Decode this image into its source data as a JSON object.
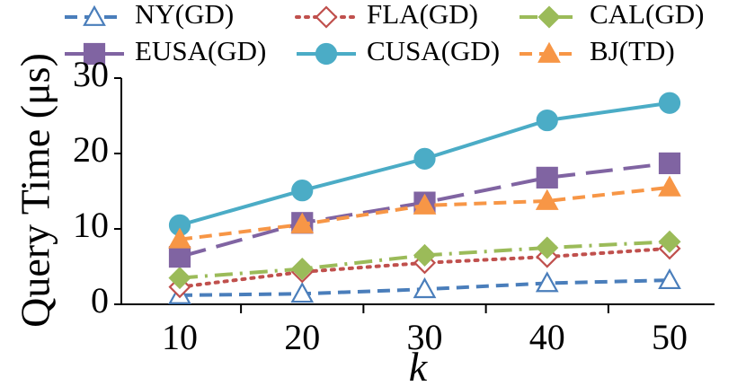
{
  "chart_data": {
    "type": "line",
    "x": [
      10,
      20,
      30,
      40,
      50
    ],
    "xlabel": "k",
    "ylabel": "Query Time (μs)",
    "ylim": [
      0,
      30
    ],
    "yticks": [
      0,
      10,
      20,
      30
    ],
    "grid": false,
    "legend_position": "top",
    "series": [
      {
        "name": "NY(GD)",
        "values": [
          1.2,
          1.4,
          2.0,
          2.8,
          3.2
        ],
        "color": "#4a7ebb",
        "marker": "triangle-open",
        "dash": "dashed"
      },
      {
        "name": "FLA(GD)",
        "values": [
          2.3,
          4.3,
          5.5,
          6.3,
          7.4
        ],
        "color": "#c0504d",
        "marker": "diamond-open",
        "dash": "dotted"
      },
      {
        "name": "CAL(GD)",
        "values": [
          3.5,
          4.7,
          6.5,
          7.5,
          8.3
        ],
        "color": "#9bbb59",
        "marker": "diamond",
        "dash": "dash-dot"
      },
      {
        "name": "EUSA(GD)",
        "values": [
          6.3,
          10.8,
          13.5,
          16.8,
          18.7
        ],
        "color": "#8064a2",
        "marker": "square",
        "dash": "long-dash"
      },
      {
        "name": "CUSA(GD)",
        "values": [
          10.5,
          15.1,
          19.3,
          24.4,
          26.7
        ],
        "color": "#4bacc6",
        "marker": "circle",
        "dash": "solid"
      },
      {
        "name": "BJ(TD)",
        "values": [
          8.6,
          10.6,
          13.1,
          13.7,
          15.5
        ],
        "color": "#f79646",
        "marker": "triangle",
        "dash": "dashed"
      }
    ]
  }
}
